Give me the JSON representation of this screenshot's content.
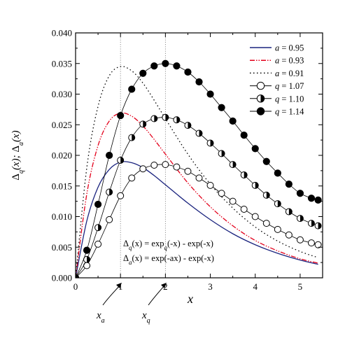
{
  "chart_data": {
    "type": "line",
    "xlabel": "x",
    "ylabel": "Δq(x); Δa(x)",
    "xlim": [
      0,
      5.5
    ],
    "ylim": [
      0,
      0.04
    ],
    "x_ticks": [
      "0",
      "1",
      "2",
      "3",
      "4",
      "5"
    ],
    "y_ticks": [
      "0.000",
      "0.005",
      "0.010",
      "0.015",
      "0.020",
      "0.025",
      "0.030",
      "0.035",
      "0.040"
    ],
    "grid": false,
    "legend_position": "top-right",
    "legend": [
      {
        "label": "a = 0.95",
        "var": "a",
        "value": "= 0.95"
      },
      {
        "label": "a = 0.93",
        "var": "a",
        "value": "= 0.93"
      },
      {
        "label": "a = 0.91",
        "var": "a",
        "value": "= 0.91"
      },
      {
        "label": "q = 1.07",
        "var": "q",
        "value": "= 1.07"
      },
      {
        "label": "q = 1.10",
        "var": "q",
        "value": "= 1.10"
      },
      {
        "label": "q = 1.14",
        "var": "q",
        "value": "= 1.14"
      }
    ],
    "series": [
      {
        "name": "a = 0.95",
        "kind": "line",
        "style": "solid",
        "color": "#1a237e",
        "x": [
          0,
          0.25,
          0.5,
          0.75,
          1.0,
          1.25,
          1.5,
          1.75,
          2.0,
          2.5,
          3.0,
          3.5,
          4.0,
          4.5,
          5.0,
          5.4
        ],
        "y": [
          0,
          0.0093,
          0.0148,
          0.0177,
          0.0189,
          0.0188,
          0.018,
          0.0167,
          0.0152,
          0.0122,
          0.0095,
          0.0072,
          0.0054,
          0.004,
          0.0029,
          0.0022
        ]
      },
      {
        "name": "a = 0.93",
        "kind": "line",
        "style": "dashdotdot",
        "color": "#e3001b",
        "x": [
          0,
          0.25,
          0.5,
          0.75,
          1.0,
          1.25,
          1.5,
          1.75,
          2.0,
          2.5,
          3.0,
          3.5,
          4.0,
          4.5,
          5.0,
          5.4
        ],
        "y": [
          0,
          0.0137,
          0.0216,
          0.0256,
          0.0269,
          0.0264,
          0.0248,
          0.0226,
          0.0202,
          0.0155,
          0.0116,
          0.0085,
          0.0061,
          0.0044,
          0.0031,
          0.0024
        ]
      },
      {
        "name": "a = 0.91",
        "kind": "line",
        "style": "dotted",
        "color": "#000000",
        "x": [
          0,
          0.25,
          0.5,
          0.75,
          1.0,
          1.25,
          1.5,
          1.75,
          2.0,
          2.5,
          3.0,
          3.5,
          4.0,
          4.5,
          5.0,
          5.4
        ],
        "y": [
          0,
          0.018,
          0.028,
          0.033,
          0.0345,
          0.0338,
          0.0318,
          0.029,
          0.026,
          0.0202,
          0.0153,
          0.0114,
          0.0083,
          0.006,
          0.0043,
          0.0033
        ]
      },
      {
        "name": "q = 1.07",
        "kind": "markers",
        "marker": "open",
        "x": [
          0,
          0.25,
          0.5,
          0.75,
          1.0,
          1.25,
          1.5,
          1.75,
          2.0,
          2.25,
          2.5,
          2.75,
          3.0,
          3.25,
          3.5,
          3.75,
          4.0,
          4.25,
          4.5,
          4.75,
          5.0,
          5.25,
          5.4
        ],
        "y": [
          0,
          0.002,
          0.0055,
          0.0095,
          0.0134,
          0.0163,
          0.0178,
          0.0184,
          0.0185,
          0.0181,
          0.0174,
          0.0163,
          0.0151,
          0.0138,
          0.0125,
          0.0112,
          0.01,
          0.0089,
          0.0079,
          0.007,
          0.0062,
          0.0057,
          0.0054
        ]
      },
      {
        "name": "q = 1.10",
        "kind": "markers",
        "marker": "half",
        "x": [
          0,
          0.25,
          0.5,
          0.75,
          1.0,
          1.25,
          1.5,
          1.75,
          2.0,
          2.25,
          2.5,
          2.75,
          3.0,
          3.25,
          3.5,
          3.75,
          4.0,
          4.25,
          4.5,
          4.75,
          5.0,
          5.25,
          5.4
        ],
        "y": [
          0,
          0.003,
          0.0082,
          0.014,
          0.0192,
          0.0229,
          0.0251,
          0.026,
          0.0262,
          0.0258,
          0.0249,
          0.0236,
          0.022,
          0.0203,
          0.0185,
          0.0168,
          0.0151,
          0.0135,
          0.0121,
          0.0108,
          0.0097,
          0.0089,
          0.0085
        ]
      },
      {
        "name": "q = 1.14",
        "kind": "markers",
        "marker": "filled",
        "x": [
          0,
          0.25,
          0.5,
          0.75,
          1.0,
          1.25,
          1.5,
          1.75,
          2.0,
          2.25,
          2.5,
          2.75,
          3.0,
          3.25,
          3.5,
          3.75,
          4.0,
          4.25,
          4.5,
          4.75,
          5.0,
          5.25,
          5.4
        ],
        "y": [
          0,
          0.0045,
          0.012,
          0.02,
          0.0265,
          0.0308,
          0.0334,
          0.0346,
          0.035,
          0.0346,
          0.0336,
          0.032,
          0.03,
          0.0278,
          0.0256,
          0.0233,
          0.0211,
          0.019,
          0.0171,
          0.0153,
          0.0138,
          0.013,
          0.0127
        ]
      }
    ],
    "vlines": [
      {
        "x": 1.0,
        "label": "x_a"
      },
      {
        "x": 2.0,
        "label": "x_q"
      }
    ],
    "formulas": [
      "Δq(x) = expq(-x) - exp(-x)",
      "Δa(x) = exp(-ax) - exp(-x)"
    ],
    "colors": {
      "a095": "#1a237e",
      "a093": "#e3001b",
      "a091": "#000000"
    }
  },
  "texts": {
    "ylabel_delta1": "Δ",
    "ylabel_sub1": "q",
    "ylabel_arg1": "(x); ",
    "ylabel_delta2": "Δ",
    "ylabel_sub2": "a",
    "ylabel_arg2": "(x)",
    "xa_main": "x",
    "xa_sub": "a",
    "xq_main": "x",
    "xq_sub": "q",
    "f1_delta": "Δ",
    "f1_sub": "q",
    "f1_mid": "(x) = exp",
    "f1_sub2": "q",
    "f1_end": "(-x) - exp(-x)",
    "f2_delta": "Δ",
    "f2_sub": "a",
    "f2_end": "(x) = exp(-ax) - exp(-x)"
  }
}
